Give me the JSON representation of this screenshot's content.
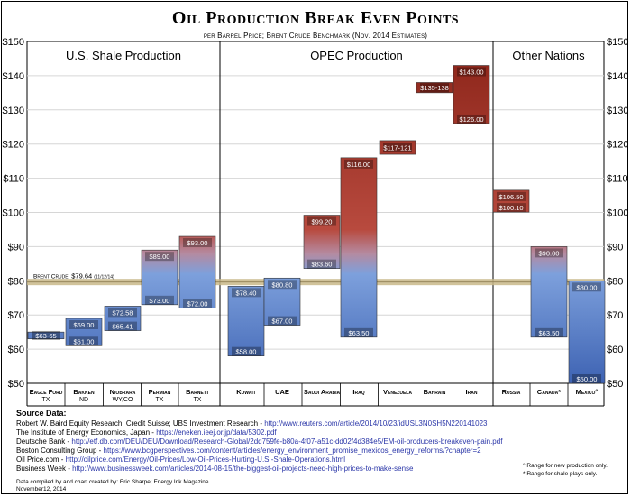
{
  "title": "Oil Production Break Even Points",
  "subtitle": "per Barrel Price; Brent Crude Benchmark (Nov. 2014 Estimates)",
  "chart_data": {
    "type": "bar",
    "title": "Oil Production Break Even Points",
    "subtitle": "per Barrel Price; Brent Crude Benchmark (Nov. 2014 Estimates)",
    "ylim": [
      50,
      150
    ],
    "y_ticks": [
      "$50",
      "$60",
      "$70",
      "$80",
      "$90",
      "$100",
      "$110",
      "$120",
      "$130",
      "$140",
      "$150"
    ],
    "y_tick_values": [
      50,
      60,
      70,
      80,
      90,
      100,
      110,
      120,
      130,
      140,
      150
    ],
    "grid": true,
    "groups": [
      {
        "label": "U.S. Shale Production",
        "start": 0,
        "end": 4
      },
      {
        "label": "OPEC Production",
        "start": 5,
        "end": 11
      },
      {
        "label": "Other Nations",
        "start": 12,
        "end": 14
      }
    ],
    "categories": [
      {
        "name": "Eagle Ford",
        "sub": "TX",
        "low": 63,
        "high": 65,
        "labels": [
          "$63-65"
        ]
      },
      {
        "name": "Bakken",
        "sub": "ND",
        "low": 61,
        "high": 69,
        "labels": [
          "$69.00",
          "$61.00"
        ]
      },
      {
        "name": "Niobrara",
        "sub": "WY,CO",
        "low": 65.41,
        "high": 72.58,
        "labels": [
          "$72.58",
          "$65.41"
        ]
      },
      {
        "name": "Permian",
        "sub": "TX",
        "low": 73,
        "high": 89,
        "labels": [
          "$89.00",
          "$73.00"
        ]
      },
      {
        "name": "Barnett",
        "sub": "TX",
        "low": 72,
        "high": 93,
        "labels": [
          "$93.00",
          "$72.00"
        ]
      },
      {
        "name": "Kuwait",
        "sub": "",
        "low": 58,
        "high": 78.4,
        "labels": [
          "$78.40",
          "$58.00"
        ]
      },
      {
        "name": "UAE",
        "sub": "",
        "low": 67,
        "high": 80.8,
        "labels": [
          "$80.80",
          "$67.00"
        ]
      },
      {
        "name": "Saudi Arabia",
        "sub": "",
        "low": 83.6,
        "high": 99.2,
        "labels": [
          "$99.20",
          "$83.60"
        ]
      },
      {
        "name": "Iraq",
        "sub": "",
        "low": 63.5,
        "high": 116,
        "labels": [
          "$116.00",
          "$63.50"
        ]
      },
      {
        "name": "Venezuela",
        "sub": "",
        "low": 117,
        "high": 121,
        "labels": [
          "$117-121"
        ]
      },
      {
        "name": "Bahrain",
        "sub": "",
        "low": 135,
        "high": 138,
        "labels": [
          "$135-138"
        ]
      },
      {
        "name": "Iran",
        "sub": "",
        "low": 126,
        "high": 143,
        "labels": [
          "$143.00",
          "$126.00"
        ]
      },
      {
        "name": "Russia",
        "sub": "",
        "low": 100.1,
        "high": 106.5,
        "labels": [
          "$106.50",
          "$100.10"
        ]
      },
      {
        "name": "Canada*",
        "sub": "",
        "low": 63.5,
        "high": 90,
        "labels": [
          "$90.00",
          "$63.50"
        ]
      },
      {
        "name": "Mexico°",
        "sub": "",
        "low": 50,
        "high": 80,
        "labels": [
          "$80.00",
          "$50.00"
        ]
      }
    ],
    "reference_line": {
      "label": "Brent Crude:",
      "value_text": "$79.64",
      "date_text": "(11/12/14)",
      "value": 79.64
    },
    "colors": {
      "high": "#8a2318",
      "mid_red": "#b84a3e",
      "low": "#3e63b3",
      "mid_blue": "#7da0dc",
      "brent": "#c9b98a"
    }
  },
  "sources": {
    "heading": "Source Data:",
    "lines": [
      {
        "text": "Robert W. Baird Equity Research; Credit Suisse;  UBS Investment Research - ",
        "url": "http://www.reuters.com/article/2014/10/23/idUSL3N0SH5N220141023"
      },
      {
        "text": "The Institute of Energy Economics, Japan - ",
        "url": "https://eneken.ieej.or.jp/data/5302.pdf"
      },
      {
        "text": "Deutsche Bank - ",
        "url": "http://etf.db.com/DEU/DEU/Download/Research-Global/2dd759fe-b80a-4f07-a51c-dd02f4d384e5/EM-oil-producers-breakeven-pain.pdf"
      },
      {
        "text": "Boston Consulting Group - ",
        "url": "https://www.bcgperspectives.com/content/articles/energy_environment_promise_mexicos_energy_reforms/?chapter=2"
      },
      {
        "text": "Oil Price.com - ",
        "url": "http://oilprice.com/Energy/Oil-Prices/Low-Oil-Prices-Hurting-U.S.-Shale-Operations.html"
      },
      {
        "text": "Business Week - ",
        "url": "http://www.businessweek.com/articles/2014-08-15/the-biggest-oil-projects-need-high-prices-to-make-sense"
      }
    ]
  },
  "notes": [
    "° Range for new production only.",
    "* Range for shale plays only."
  ],
  "credit": [
    "Data compiled by and chart created by:  Eric Sharpe; Energy Ink Magazine",
    "November12, 2014"
  ]
}
